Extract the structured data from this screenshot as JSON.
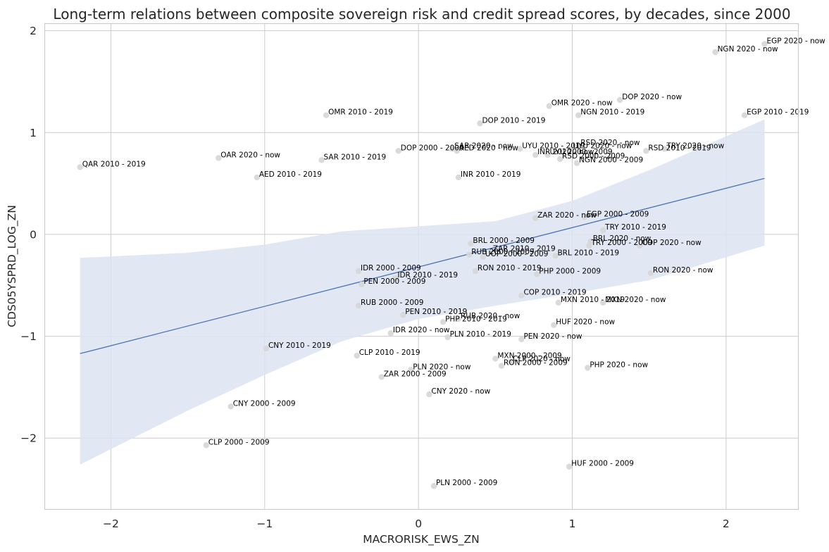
{
  "chart_data": {
    "type": "scatter",
    "title": "Long-term relations between composite sovereign risk and credit spread scores, by decades, since 2000",
    "xlabel": "MACRORISK_EWS_ZN",
    "ylabel": "CDS05YSPRD_LOG_ZN",
    "xlim": [
      -2.43,
      2.47
    ],
    "ylim": [
      -2.7,
      2.07
    ],
    "xticks": [
      -2,
      -1,
      0,
      1,
      2
    ],
    "yticks": [
      -2,
      -1,
      0,
      1,
      2
    ],
    "xtick_labels": [
      "−2",
      "−1",
      "0",
      "1",
      "2"
    ],
    "ytick_labels": [
      "−2",
      "−1",
      "0",
      "1",
      "2"
    ],
    "grid": true,
    "colors": {
      "point": "#d6d6d6",
      "line": "#4c72b0",
      "band": "#dde4f1",
      "grid": "#cccccc"
    },
    "regression": {
      "x": [
        -2.2,
        2.25
      ],
      "y": [
        -1.17,
        0.55
      ],
      "band_x": [
        -2.2,
        -1.5,
        -1.0,
        -0.5,
        0.0,
        0.5,
        1.0,
        1.5,
        2.25
      ],
      "band_upper": [
        -0.23,
        -0.18,
        -0.1,
        0.03,
        0.08,
        0.13,
        0.33,
        0.63,
        1.13
      ],
      "band_lower": [
        -2.26,
        -1.73,
        -1.38,
        -1.05,
        -0.83,
        -0.7,
        -0.58,
        -0.45,
        -0.11
      ]
    },
    "points": [
      {
        "label": "EGP 2020 - now",
        "x": 2.25,
        "y": 1.87
      },
      {
        "label": "NGN 2020 - now",
        "x": 1.93,
        "y": 1.79
      },
      {
        "label": "DOP 2020 - now",
        "x": 1.31,
        "y": 1.32
      },
      {
        "label": "OMR 2020 - now",
        "x": 0.85,
        "y": 1.26
      },
      {
        "label": "NGN 2010 - 2019",
        "x": 1.04,
        "y": 1.17
      },
      {
        "label": "EGP 2010 - 2019",
        "x": 2.12,
        "y": 1.17
      },
      {
        "label": "OMR 2010 - 2019",
        "x": -0.6,
        "y": 1.17
      },
      {
        "label": "DOP 2010 - 2019",
        "x": 0.4,
        "y": 1.09
      },
      {
        "label": "RSD 2020 - now",
        "x": 1.04,
        "y": 0.87
      },
      {
        "label": "TRY 2020 - now",
        "x": 1.6,
        "y": 0.84
      },
      {
        "label": "SAR 2020 - now",
        "x": 0.22,
        "y": 0.84
      },
      {
        "label": "UYU 2010 - 2019",
        "x": 0.66,
        "y": 0.84
      },
      {
        "label": "UYU 2020 - now",
        "x": 0.99,
        "y": 0.84
      },
      {
        "label": "AED 2020 - now",
        "x": 0.25,
        "y": 0.82
      },
      {
        "label": "DOP 2000 - 2009",
        "x": -0.13,
        "y": 0.82
      },
      {
        "label": "RSD 2010 - 2019",
        "x": 1.48,
        "y": 0.82
      },
      {
        "label": "INR 2020 - now",
        "x": 0.76,
        "y": 0.78
      },
      {
        "label": "UYU 2000 - 2009",
        "x": 0.84,
        "y": 0.78
      },
      {
        "label": "RSD 2000 - 2009",
        "x": 0.92,
        "y": 0.74
      },
      {
        "label": "NGN 2000 - 2009",
        "x": 1.03,
        "y": 0.7
      },
      {
        "label": "OAR 2020 - now",
        "x": -1.3,
        "y": 0.75
      },
      {
        "label": "SAR 2010 - 2019",
        "x": -0.63,
        "y": 0.73
      },
      {
        "label": "QAR 2010 - 2019",
        "x": -2.2,
        "y": 0.66
      },
      {
        "label": "AED 2010 - 2019",
        "x": -1.05,
        "y": 0.56
      },
      {
        "label": "INR 2010 - 2019",
        "x": 0.26,
        "y": 0.56
      },
      {
        "label": "ZAR 2020 - now",
        "x": 0.76,
        "y": 0.16
      },
      {
        "label": "EGP 2000 - 2009",
        "x": 1.08,
        "y": 0.17
      },
      {
        "label": "TRY 2010 - 2019",
        "x": 1.2,
        "y": 0.04
      },
      {
        "label": "BRL 2020 - now",
        "x": 1.12,
        "y": -0.07
      },
      {
        "label": "BRL 2000 - 2009",
        "x": 0.34,
        "y": -0.09
      },
      {
        "label": "TRY 2000 - 2009",
        "x": 1.11,
        "y": -0.11
      },
      {
        "label": "COP 2020 - now",
        "x": 1.44,
        "y": -0.11
      },
      {
        "label": "ZAR 2010 - 2019",
        "x": 0.47,
        "y": -0.17
      },
      {
        "label": "RUB 2000 - 2009",
        "x": 0.33,
        "y": -0.2
      },
      {
        "label": "UOP 2000 - 2009",
        "x": 0.42,
        "y": -0.22
      },
      {
        "label": "BRL 2010 - 2019",
        "x": 0.89,
        "y": -0.21
      },
      {
        "label": "IDR 2000 - 2009",
        "x": -0.39,
        "y": -0.36
      },
      {
        "label": "RON 2010 - 2019",
        "x": 0.37,
        "y": -0.36
      },
      {
        "label": "PHP 2000 - 2009",
        "x": 0.77,
        "y": -0.39
      },
      {
        "label": "RON 2020 - now",
        "x": 1.51,
        "y": -0.38
      },
      {
        "label": "IDR 2010 - 2019",
        "x": -0.15,
        "y": -0.43
      },
      {
        "label": "PEN 2000 - 2009",
        "x": -0.37,
        "y": -0.49
      },
      {
        "label": "COP 2010 - 2019",
        "x": 0.67,
        "y": -0.6
      },
      {
        "label": "MXN 2010 - 2019",
        "x": 0.91,
        "y": -0.67
      },
      {
        "label": "MXN 2020 - now",
        "x": 1.2,
        "y": -0.67
      },
      {
        "label": "RUB 2000 - 2009",
        "x": -0.39,
        "y": -0.7
      },
      {
        "label": "PEN 2010 - 2019",
        "x": -0.1,
        "y": -0.79
      },
      {
        "label": "RUB 2020 - now",
        "x": 0.26,
        "y": -0.83
      },
      {
        "label": "PHP 2010 - 2019",
        "x": 0.16,
        "y": -0.86
      },
      {
        "label": "HUF 2020 - now",
        "x": 0.88,
        "y": -0.89
      },
      {
        "label": "IDR 2020 - now",
        "x": -0.18,
        "y": -0.97
      },
      {
        "label": "PLN 2010 - 2019",
        "x": 0.19,
        "y": -1.01
      },
      {
        "label": "PEN 2020 - now",
        "x": 0.67,
        "y": -1.03
      },
      {
        "label": "CNY 2010 - 2019",
        "x": -0.99,
        "y": -1.12
      },
      {
        "label": "CLP 2010 - 2019",
        "x": -0.4,
        "y": -1.19
      },
      {
        "label": "MXN 2000 - 2009",
        "x": 0.5,
        "y": -1.22
      },
      {
        "label": "CLP 2020 - now",
        "x": 0.6,
        "y": -1.25
      },
      {
        "label": "RON 2000 - 2009",
        "x": 0.54,
        "y": -1.29
      },
      {
        "label": "PHP 2020 - now",
        "x": 1.1,
        "y": -1.31
      },
      {
        "label": "PLN 2020 - now",
        "x": -0.05,
        "y": -1.33
      },
      {
        "label": "ZAR 2000 - 2009",
        "x": -0.24,
        "y": -1.4
      },
      {
        "label": "CNY 2020 - now",
        "x": 0.07,
        "y": -1.57
      },
      {
        "label": "CNY 2000 - 2009",
        "x": -1.22,
        "y": -1.69
      },
      {
        "label": "CLP 2000 - 2009",
        "x": -1.38,
        "y": -2.07
      },
      {
        "label": "HUF 2000 - 2009",
        "x": 0.98,
        "y": -2.28
      },
      {
        "label": "PLN 2000 - 2009",
        "x": 0.1,
        "y": -2.47
      }
    ]
  }
}
